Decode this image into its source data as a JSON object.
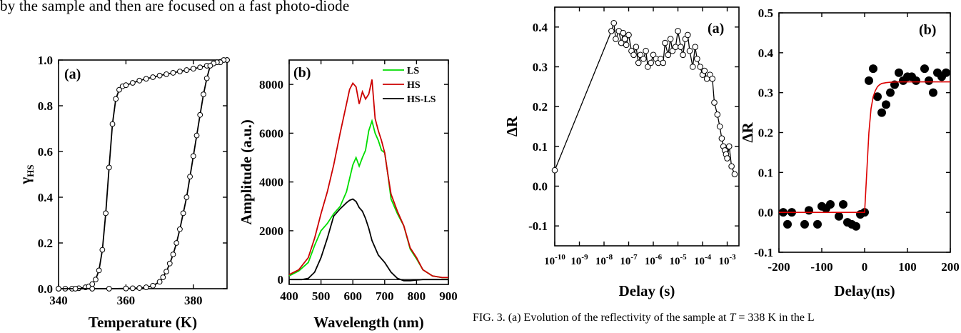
{
  "body_text": "by the sample and then are focused on a fast photo-diode",
  "caption": {
    "prefix": "FIG. 3. (a) Evolution of the reflectivity of the sample at ",
    "var": "T",
    "suffix": " = 338 K in the L"
  },
  "chart_data": [
    {
      "type": "line",
      "panel_label": "(a)",
      "xlabel": "Temperature (K)",
      "ylabel": "γ",
      "ylabel_sub": "HS",
      "xlim": [
        340,
        390
      ],
      "ylim": [
        0.0,
        1.0
      ],
      "xticks": [
        340,
        360,
        380
      ],
      "yticks": [
        "0.0",
        "0.2",
        "0.4",
        "0.6",
        "0.8",
        "1.0"
      ],
      "series": [
        {
          "x": [
            340,
            342,
            344,
            346,
            348,
            349,
            350,
            351,
            352,
            353,
            354,
            355,
            356,
            357,
            358,
            359,
            360,
            362,
            364,
            366,
            368,
            370,
            372,
            374,
            376,
            378,
            380,
            382,
            384,
            386,
            388,
            390
          ],
          "values": [
            0.0,
            0.0,
            0.0,
            0.002,
            0.006,
            0.01,
            0.02,
            0.04,
            0.08,
            0.17,
            0.33,
            0.53,
            0.72,
            0.83,
            0.87,
            0.885,
            0.89,
            0.9,
            0.91,
            0.918,
            0.925,
            0.932,
            0.938,
            0.944,
            0.95,
            0.956,
            0.962,
            0.968,
            0.975,
            0.985,
            0.992,
            1.0
          ]
        },
        {
          "x": [
            390,
            389,
            388,
            387,
            386,
            385,
            384,
            383,
            382,
            381,
            380,
            379,
            378,
            377,
            376,
            375,
            374,
            373,
            372,
            371,
            370,
            368,
            366,
            364,
            362,
            360,
            355,
            350,
            345,
            340
          ],
          "values": [
            1.0,
            1.0,
            0.99,
            0.99,
            0.985,
            0.975,
            0.92,
            0.85,
            0.76,
            0.67,
            0.58,
            0.49,
            0.4,
            0.33,
            0.26,
            0.2,
            0.15,
            0.11,
            0.075,
            0.05,
            0.03,
            0.013,
            0.006,
            0.003,
            0.002,
            0.001,
            0.0,
            0.0,
            0.0,
            0.0
          ]
        }
      ]
    },
    {
      "type": "line",
      "panel_label": "(b)",
      "xlabel": "Wavelength (nm)",
      "ylabel": "Amplitude (a.u.)",
      "xlim": [
        400,
        900
      ],
      "ylim": [
        -200,
        9000
      ],
      "xticks": [
        400,
        500,
        600,
        700,
        800,
        900
      ],
      "yticks": [
        0,
        2000,
        4000,
        6000,
        8000
      ],
      "legend": "top-right",
      "series": [
        {
          "name": "LS",
          "color": "#00dd00",
          "x": [
            400,
            430,
            460,
            480,
            500,
            520,
            540,
            560,
            580,
            600,
            610,
            620,
            630,
            640,
            650,
            660,
            670,
            680,
            690,
            700,
            710,
            720,
            740,
            760,
            780,
            800,
            820,
            850,
            880,
            900
          ],
          "values": [
            150,
            350,
            700,
            1400,
            2000,
            2300,
            2700,
            3000,
            3600,
            4700,
            5000,
            4650,
            5000,
            5300,
            6100,
            6500,
            6000,
            5700,
            5300,
            5200,
            4300,
            3300,
            2700,
            2200,
            1250,
            850,
            400,
            150,
            80,
            80
          ]
        },
        {
          "name": "HS",
          "color": "#cc0000",
          "x": [
            400,
            430,
            460,
            480,
            500,
            520,
            540,
            560,
            580,
            590,
            600,
            610,
            620,
            630,
            640,
            650,
            660,
            670,
            680,
            690,
            700,
            710,
            720,
            740,
            760,
            780,
            800,
            820,
            850,
            880,
            900
          ],
          "values": [
            200,
            400,
            900,
            1700,
            2700,
            3600,
            4700,
            6000,
            7200,
            7800,
            8050,
            7900,
            7200,
            7700,
            7400,
            7600,
            8200,
            6600,
            6100,
            5700,
            5200,
            4300,
            3500,
            2800,
            2200,
            1300,
            900,
            400,
            150,
            80,
            80
          ]
        },
        {
          "name": "HS-LS",
          "color": "#000000",
          "x": [
            400,
            440,
            460,
            480,
            500,
            520,
            540,
            560,
            580,
            590,
            600,
            610,
            620,
            630,
            640,
            650,
            660,
            680,
            700,
            720,
            740,
            760,
            780,
            800,
            820,
            850,
            900
          ],
          "values": [
            0,
            0,
            50,
            300,
            900,
            1700,
            2600,
            2900,
            3150,
            3250,
            3300,
            3200,
            2950,
            2800,
            2500,
            2100,
            1600,
            1000,
            700,
            300,
            50,
            -50,
            -50,
            -20,
            0,
            0,
            0
          ]
        }
      ]
    },
    {
      "type": "scatter",
      "panel_label": "(a)",
      "xlabel": "Delay (s)",
      "ylabel": "ΔR",
      "x_scale": "log",
      "xlim": [
        1e-10,
        0.003
      ],
      "ylim": [
        -0.15,
        0.45
      ],
      "xticks_exp": [
        "-10",
        "-9",
        "-8",
        "-7",
        "-6",
        "-5",
        "-4",
        "-3"
      ],
      "yticks": [
        "-0.1",
        "0.0",
        "0.1",
        "0.2",
        "0.3",
        "0.4"
      ],
      "series": [
        {
          "x": [
            1e-10,
            2e-08,
            2.5e-08,
            3e-08,
            4e-08,
            5e-08,
            6e-08,
            7e-08,
            8e-08,
            1e-07,
            1.3e-07,
            1.6e-07,
            2e-07,
            2.5e-07,
            3e-07,
            4e-07,
            5e-07,
            6e-07,
            8e-07,
            1e-06,
            1.3e-06,
            1.6e-06,
            2e-06,
            2.5e-06,
            3e-06,
            4e-06,
            5e-06,
            6e-06,
            8e-06,
            1e-05,
            1.3e-05,
            1.6e-05,
            2e-05,
            2.5e-05,
            3e-05,
            4e-05,
            5e-05,
            6e-05,
            8e-05,
            0.0001,
            0.00012,
            0.00015,
            0.0002,
            0.00025,
            0.0003,
            0.0004,
            0.0005,
            0.0006,
            0.0007,
            0.0008,
            0.0009,
            0.001,
            0.0012,
            0.0015,
            0.002
          ],
          "values": [
            0.04,
            0.39,
            0.41,
            0.37,
            0.39,
            0.36,
            0.385,
            0.37,
            0.355,
            0.38,
            0.34,
            0.33,
            0.35,
            0.31,
            0.33,
            0.32,
            0.34,
            0.3,
            0.31,
            0.33,
            0.32,
            0.31,
            0.32,
            0.31,
            0.36,
            0.33,
            0.37,
            0.34,
            0.35,
            0.39,
            0.35,
            0.33,
            0.37,
            0.38,
            0.34,
            0.3,
            0.35,
            0.32,
            0.3,
            0.28,
            0.29,
            0.27,
            0.28,
            0.27,
            0.21,
            0.18,
            0.15,
            0.12,
            0.1,
            0.09,
            0.08,
            0.07,
            0.1,
            0.05,
            0.03
          ]
        }
      ]
    },
    {
      "type": "scatter",
      "panel_label": "(b)",
      "xlabel": "Delay(ns)",
      "ylabel": "ΔR",
      "xlim": [
        -200,
        200
      ],
      "ylim": [
        -0.1,
        0.5
      ],
      "xticks": [
        -200,
        -100,
        0,
        100,
        200
      ],
      "yticks": [
        "-0.1",
        "0.0",
        "0.1",
        "0.2",
        "0.3",
        "0.4",
        "0.5"
      ],
      "series": [
        {
          "x": [
            -190,
            -180,
            -170,
            -140,
            -130,
            -110,
            -100,
            -90,
            -80,
            -60,
            -50,
            -40,
            -30,
            -20,
            -10,
            0,
            10,
            20,
            30,
            40,
            50,
            60,
            70,
            80,
            90,
            100,
            110,
            120,
            140,
            150,
            160,
            170,
            180,
            190
          ],
          "values": [
            0.0,
            -0.03,
            0.0,
            -0.03,
            0.005,
            -0.03,
            0.015,
            0.01,
            0.02,
            -0.01,
            0.02,
            -0.025,
            -0.03,
            -0.035,
            -0.005,
            0.0,
            0.33,
            0.36,
            0.29,
            0.25,
            0.27,
            0.3,
            0.32,
            0.35,
            0.33,
            0.34,
            0.34,
            0.33,
            0.36,
            0.33,
            0.3,
            0.35,
            0.34,
            0.35
          ]
        },
        {
          "name": "fit",
          "color": "#dd0000",
          "fit": true,
          "x": [
            -200,
            -150,
            -100,
            -50,
            0,
            5,
            10,
            15,
            20,
            25,
            30,
            35,
            40,
            50,
            60,
            80,
            100,
            150,
            200
          ],
          "values": [
            0,
            0,
            0,
            0,
            0,
            0.1,
            0.2,
            0.26,
            0.29,
            0.305,
            0.315,
            0.32,
            0.323,
            0.325,
            0.326,
            0.327,
            0.327,
            0.327,
            0.327
          ]
        }
      ]
    }
  ]
}
